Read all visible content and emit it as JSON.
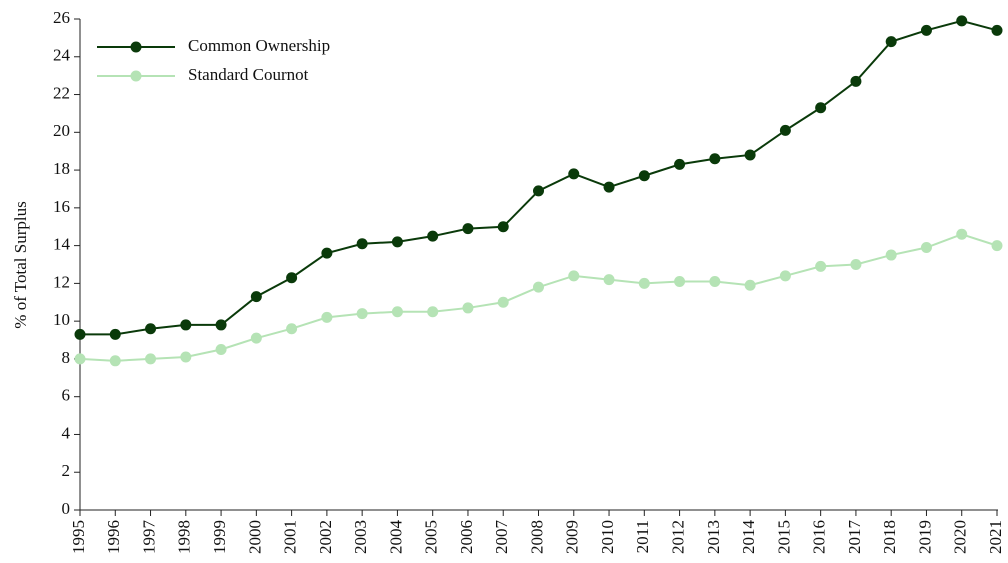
{
  "chart_data": {
    "type": "line",
    "y_label": "% of Total Surplus",
    "categories": [
      "1995",
      "1996",
      "1997",
      "1998",
      "1999",
      "2000",
      "2001",
      "2002",
      "2003",
      "2004",
      "2005",
      "2006",
      "2007",
      "2008",
      "2009",
      "2010",
      "2011",
      "2012",
      "2013",
      "2014",
      "2015",
      "2016",
      "2017",
      "2018",
      "2019",
      "2020",
      "2021"
    ],
    "series": [
      {
        "name": "Common Ownership",
        "color": "#0a3a0a",
        "values": [
          9.3,
          9.3,
          9.6,
          9.8,
          9.8,
          11.3,
          12.3,
          13.6,
          14.1,
          14.2,
          14.5,
          14.9,
          15.0,
          16.9,
          17.8,
          17.1,
          17.7,
          18.3,
          18.6,
          18.8,
          20.1,
          21.3,
          22.7,
          24.8,
          25.4,
          25.9,
          25.4
        ]
      },
      {
        "name": "Standard Cournot",
        "color": "#b5e3b5",
        "values": [
          8.0,
          7.9,
          8.0,
          8.1,
          8.5,
          9.1,
          9.6,
          10.2,
          10.4,
          10.5,
          10.5,
          10.7,
          11.0,
          11.8,
          12.4,
          12.2,
          12.0,
          12.1,
          12.1,
          11.9,
          12.4,
          12.9,
          13.0,
          13.5,
          13.9,
          14.6,
          14.0
        ]
      }
    ],
    "ylim": [
      0,
      26
    ],
    "yticks": [
      0,
      2,
      4,
      6,
      8,
      10,
      12,
      14,
      16,
      18,
      20,
      22,
      24,
      26
    ],
    "legend": "upper left",
    "grid": false
  }
}
